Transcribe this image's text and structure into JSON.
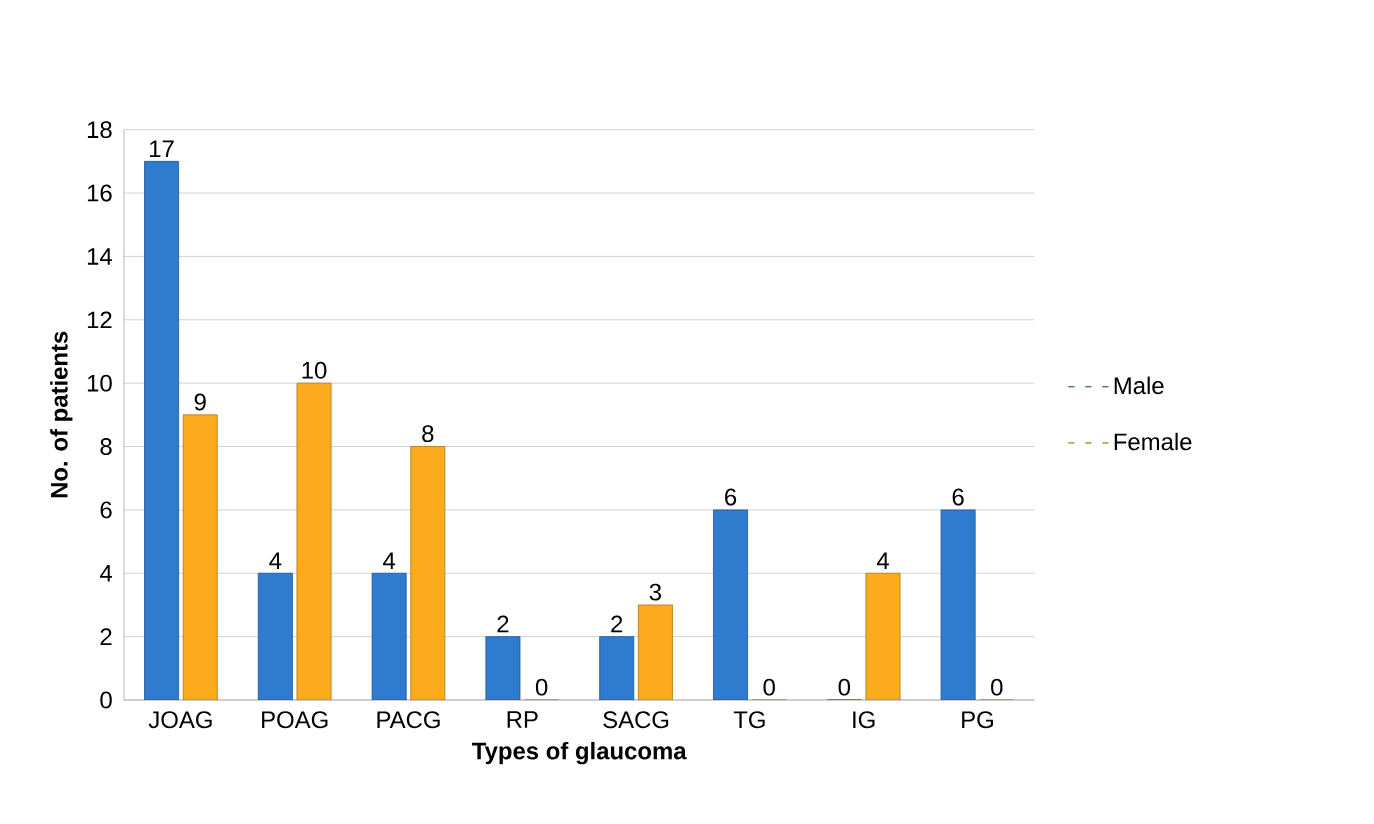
{
  "chart_data": {
    "type": "bar",
    "xlabel": "Types of glaucoma",
    "ylabel": "No. of patients",
    "categories": [
      "JOAG",
      "POAG",
      "PACG",
      "RP",
      "SACG",
      "TG",
      "IG",
      "PG"
    ],
    "series": [
      {
        "name": "Male",
        "color": "#2e7bcf",
        "values": [
          17,
          4,
          4,
          2,
          2,
          6,
          0,
          6
        ]
      },
      {
        "name": "Female",
        "color": "#fbab1b",
        "values": [
          9,
          10,
          8,
          0,
          3,
          0,
          4,
          0
        ]
      }
    ],
    "ylim": [
      0,
      18
    ],
    "yticks": [
      0,
      2,
      4,
      6,
      8,
      10,
      12,
      14,
      16,
      18
    ],
    "grid": "y",
    "legend": "right",
    "data_labels": true
  }
}
